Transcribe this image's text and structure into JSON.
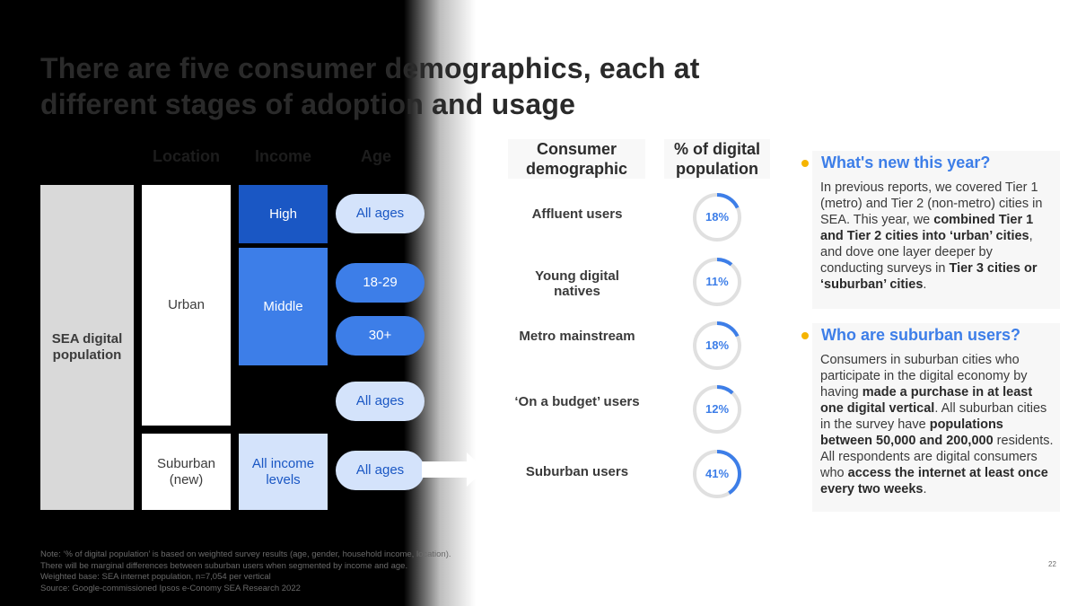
{
  "title": "There are five consumer demographics, each at different stages of adoption and usage",
  "left_headers": {
    "location": "Location",
    "income": "Income",
    "age": "Age"
  },
  "root_label": "SEA digital population",
  "locations": {
    "urban": "Urban",
    "suburban": "Suburban (new)"
  },
  "incomes": {
    "high": "High",
    "middle": "Middle",
    "all": "All income levels"
  },
  "ages": {
    "a1": "All ages",
    "a2": "18-29",
    "a3": "30+",
    "a4": "All ages",
    "a5": "All ages"
  },
  "right_headers": {
    "demographic": "Consumer demographic",
    "share": "% of digital population"
  },
  "chart_data": {
    "type": "pie",
    "title": "% of digital population",
    "categories": [
      "Affluent users",
      "Young digital natives",
      "Metro mainstream",
      "‘On a budget’ users",
      "Suburban users"
    ],
    "values": [
      18,
      11,
      18,
      12,
      41
    ],
    "value_labels": [
      "18%",
      "11%",
      "18%",
      "12%",
      "41%"
    ],
    "unit": "%"
  },
  "side": {
    "new_title": "What's new this year?",
    "new_text_1": "In previous reports, we covered Tier 1 (metro) and Tier 2 (non-metro) cities in SEA. This year, we ",
    "new_text_b1": "combined Tier 1 and Tier 2 cities into ‘urban’ cities",
    "new_text_2": ", and dove one layer deeper by conducting surveys in ",
    "new_text_b2": "Tier 3 cities or ‘suburban’ cities",
    "new_text_3": ".",
    "sub_title": "Who are suburban users?",
    "sub_text_1": "Consumers in suburban cities who participate in the digital economy by having ",
    "sub_text_b1": "made a purchase in at least one digital vertical",
    "sub_text_2": ". All suburban cities in the survey have ",
    "sub_text_b2": "populations between 50,000 and 200,000",
    "sub_text_3": " residents. All respondents are digital consumers who ",
    "sub_text_b3": "access the internet at least once every two weeks",
    "sub_text_4": "."
  },
  "notes": {
    "line1": "Note: ‘% of digital population’ is based on weighted survey results (age, gender, household income, location).",
    "line2": "There will be marginal differences between suburban users when segmented by income and age.",
    "line3": "Weighted base: SEA internet population, n=7,054 per vertical",
    "line4": "Source: Google-commissioned Ipsos e-Conomy SEA Research 2022"
  },
  "page_number": "22",
  "colors": {
    "accent": "#3d7ee8",
    "dark_blue": "#1a57c4",
    "light_blue": "#d4e3fb",
    "bullet": "#f5b400",
    "ring_track": "#e0e0e0"
  }
}
